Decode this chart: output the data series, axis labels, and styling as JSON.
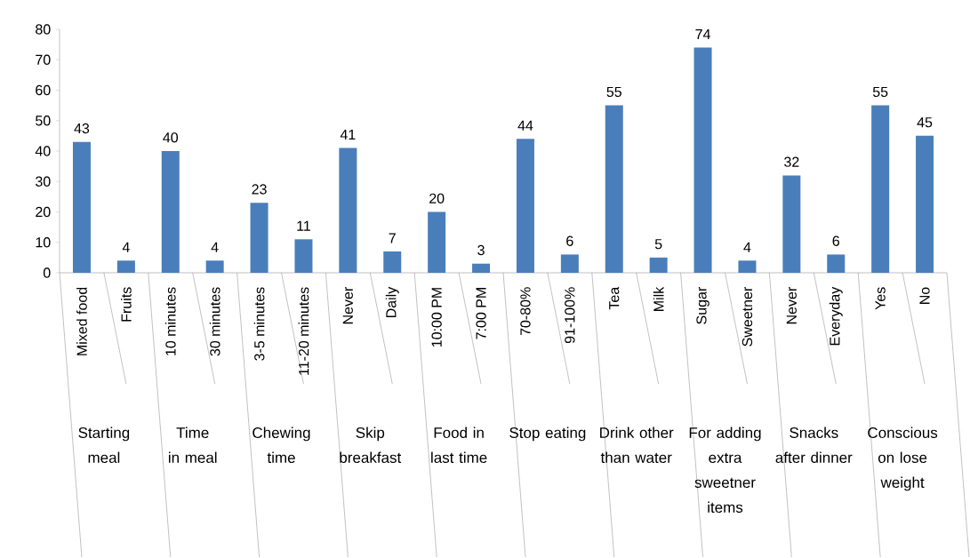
{
  "chart_data": {
    "type": "bar",
    "categories": [
      "Mixed food",
      "Fruits",
      "10 minutes",
      "30 minutes",
      "3-5 minutes",
      "11-20 minutes",
      "Never",
      "Daily",
      "10:00 PM",
      "7:00 PM",
      "70-80%",
      "91-100%",
      "Tea",
      "Milk",
      "Sugar",
      "Sweetner",
      "Never",
      "Everyday",
      "Yes",
      "No"
    ],
    "values": [
      43,
      4,
      40,
      4,
      23,
      11,
      41,
      7,
      20,
      3,
      44,
      6,
      55,
      5,
      74,
      4,
      32,
      6,
      55,
      45
    ],
    "color": "#4a7ebb",
    "ylim": [
      0,
      80
    ],
    "yticks": [
      0,
      10,
      20,
      30,
      40,
      50,
      60,
      70,
      80
    ],
    "data_labels": true,
    "annotations": [
      "Starting meal",
      "Time in meal",
      "Chewing time",
      "Skip breakfast",
      "Food in last time",
      "Stop eating",
      "Drink other than water",
      "For adding extra sweetner items",
      "Snacks after dinner",
      "Conscious on lose weight"
    ]
  }
}
